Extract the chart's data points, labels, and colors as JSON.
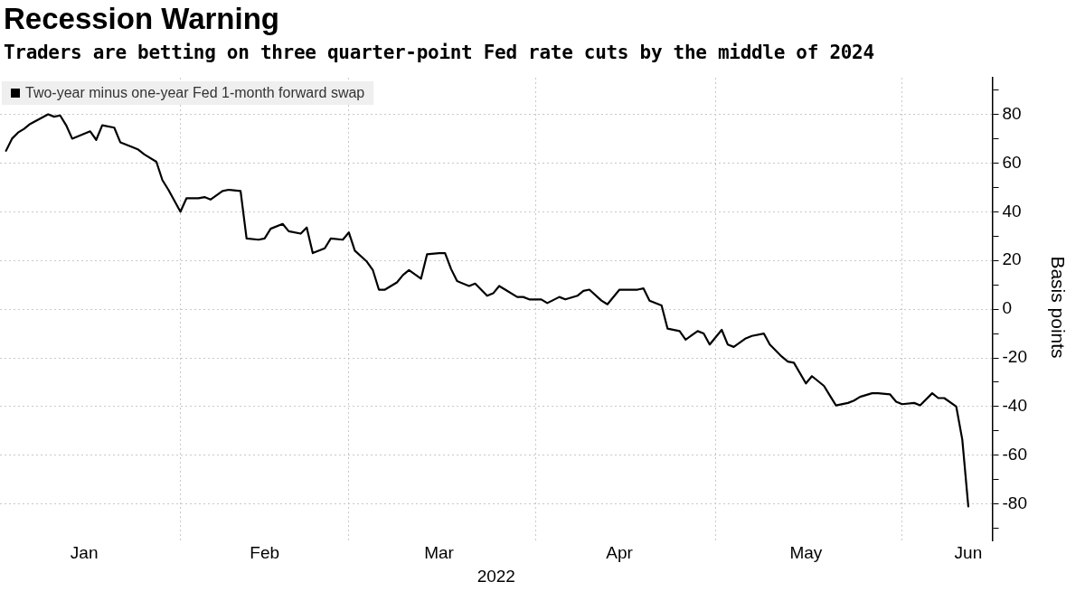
{
  "chart_data": {
    "type": "line",
    "title": "Recession Warning",
    "subtitle": "Traders are betting on three quarter-point Fed rate cuts by the middle of 2024",
    "xlabel": "2022",
    "ylabel": "Basis points",
    "legend": "top left",
    "grid": true,
    "marker": "none",
    "line_style": "solid",
    "xlim": [
      "2022-01-02",
      "2022-06-16"
    ],
    "xticks": [
      {
        "value": "2022-01-16",
        "label": "Jan"
      },
      {
        "value": "2022-02-01",
        "label": null
      },
      {
        "value": "2022-02-15",
        "label": "Feb"
      },
      {
        "value": "2022-03-01",
        "label": null
      },
      {
        "value": "2022-03-16",
        "label": "Mar"
      },
      {
        "value": "2022-04-01",
        "label": null
      },
      {
        "value": "2022-04-15",
        "label": "Apr"
      },
      {
        "value": "2022-05-01",
        "label": null
      },
      {
        "value": "2022-05-16",
        "label": "May"
      },
      {
        "value": "2022-06-01",
        "label": null
      },
      {
        "value": "2022-06-12",
        "label": "Jun"
      }
    ],
    "ylim": [
      -95,
      95
    ],
    "yticks": [
      {
        "value": -90,
        "label": null
      },
      -80,
      {
        "value": -70,
        "label": null
      },
      -60,
      {
        "value": -50,
        "label": null
      },
      -40,
      {
        "value": -30,
        "label": null
      },
      -20,
      {
        "value": -10,
        "label": null
      },
      0,
      {
        "value": 10,
        "label": null
      },
      20,
      {
        "value": 30,
        "label": null
      },
      40,
      {
        "value": 50,
        "label": null
      },
      60,
      {
        "value": 70,
        "label": null
      },
      80,
      {
        "value": 90,
        "label": null
      }
    ],
    "x": [
      "2022-01-03",
      "2022-01-04",
      "2022-01-05",
      "2022-01-06",
      "2022-01-07",
      "2022-01-10",
      "2022-01-11",
      "2022-01-12",
      "2022-01-13",
      "2022-01-14",
      "2022-01-17",
      "2022-01-18",
      "2022-01-19",
      "2022-01-21",
      "2022-01-22",
      "2022-01-24",
      "2022-01-25",
      "2022-01-26",
      "2022-01-28",
      "2022-01-29",
      "2022-01-30",
      "2022-02-01",
      "2022-02-02",
      "2022-02-04",
      "2022-02-05",
      "2022-02-06",
      "2022-02-08",
      "2022-02-09",
      "2022-02-11",
      "2022-02-12",
      "2022-02-14",
      "2022-02-15",
      "2022-02-16",
      "2022-02-18",
      "2022-02-19",
      "2022-02-21",
      "2022-02-22",
      "2022-02-23",
      "2022-02-25",
      "2022-02-26",
      "2022-02-28",
      "2022-03-01",
      "2022-03-02",
      "2022-03-04",
      "2022-03-05",
      "2022-03-06",
      "2022-03-07",
      "2022-03-09",
      "2022-03-10",
      "2022-03-11",
      "2022-03-13",
      "2022-03-14",
      "2022-03-16",
      "2022-03-17",
      "2022-03-18",
      "2022-03-19",
      "2022-03-21",
      "2022-03-22",
      "2022-03-24",
      "2022-03-25",
      "2022-03-26",
      "2022-03-27",
      "2022-03-29",
      "2022-03-30",
      "2022-03-31",
      "2022-04-02",
      "2022-04-03",
      "2022-04-05",
      "2022-04-06",
      "2022-04-08",
      "2022-04-09",
      "2022-04-10",
      "2022-04-12",
      "2022-04-13",
      "2022-04-15",
      "2022-04-16",
      "2022-04-18",
      "2022-04-19",
      "2022-04-20",
      "2022-04-22",
      "2022-04-23",
      "2022-04-25",
      "2022-04-26",
      "2022-04-28",
      "2022-04-29",
      "2022-04-30",
      "2022-05-02",
      "2022-05-03",
      "2022-05-04",
      "2022-05-06",
      "2022-05-07",
      "2022-05-09",
      "2022-05-10",
      "2022-05-12",
      "2022-05-13",
      "2022-05-14",
      "2022-05-16",
      "2022-05-17",
      "2022-05-19",
      "2022-05-20",
      "2022-05-21",
      "2022-05-23",
      "2022-05-24",
      "2022-05-25",
      "2022-05-27",
      "2022-05-28",
      "2022-05-30",
      "2022-05-31",
      "2022-06-01",
      "2022-06-03",
      "2022-06-04",
      "2022-06-06",
      "2022-06-07",
      "2022-06-08",
      "2022-06-10",
      "2022-06-11",
      "2022-06-12"
    ],
    "series": [
      {
        "name": "Two-year minus one-year Fed 1-month forward swap",
        "color": "#000000",
        "values": [
          65,
          70,
          72.5,
          74,
          76,
          80,
          79,
          79.5,
          75.5,
          70,
          73,
          69.5,
          75.5,
          74.5,
          68.5,
          66.5,
          65.5,
          63.5,
          60.5,
          53,
          49,
          40,
          45.5,
          45.5,
          46,
          45,
          48.5,
          49,
          48.5,
          29,
          28.5,
          29,
          33,
          35,
          32,
          31,
          33.5,
          23,
          25,
          29,
          28.5,
          31.5,
          24,
          19.5,
          16,
          8,
          8,
          11,
          14,
          16,
          12.5,
          22.5,
          23,
          23,
          16.5,
          11.5,
          9.5,
          10.5,
          5.5,
          6.5,
          9.5,
          8,
          5,
          5,
          4,
          4,
          2.5,
          5,
          4,
          5.5,
          7.5,
          8,
          3.5,
          2,
          8,
          8,
          8,
          8.5,
          3.5,
          1.5,
          -8,
          -9,
          -12.5,
          -9,
          -10,
          -14.5,
          -8.5,
          -14.5,
          -15.5,
          -12,
          -11,
          -10,
          -14.5,
          -19.5,
          -21.5,
          -22,
          -30.5,
          -27.5,
          -31.5,
          -35.5,
          -39.5,
          -38.5,
          -37.5,
          -36,
          -34.5,
          -34.5,
          -35,
          -38,
          -39,
          -38.5,
          -39.5,
          -34.5,
          -36.5,
          -36.5,
          -40,
          -53.5,
          -81
        ]
      }
    ]
  }
}
